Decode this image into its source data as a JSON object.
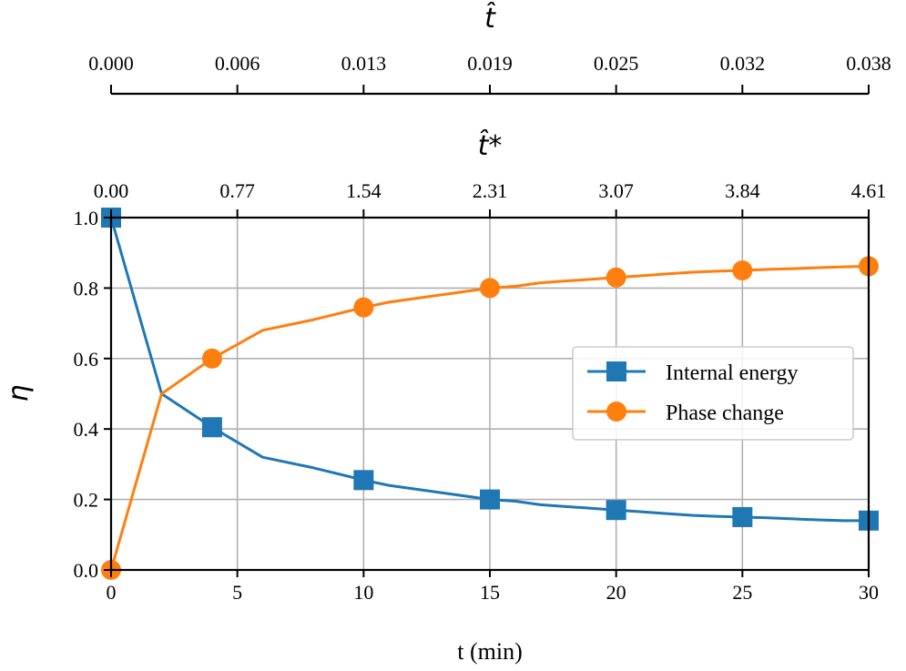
{
  "chart_data": {
    "type": "line",
    "xlabel": "t (min)",
    "ylabel": "η",
    "xlim": [
      0,
      30
    ],
    "ylim": [
      0,
      1
    ],
    "x_ticks": [
      0,
      5,
      10,
      15,
      20,
      25,
      30
    ],
    "y_ticks": [
      "0.0",
      "0.2",
      "0.4",
      "0.6",
      "0.8",
      "1.0"
    ],
    "grid": true,
    "legend_position": "center-right",
    "secondary_axis": {
      "label": "t̂*",
      "ticks": [
        "0.00",
        "0.77",
        "1.54",
        "2.31",
        "3.07",
        "3.84",
        "4.61"
      ]
    },
    "tertiary_axis": {
      "label": "t̂",
      "ticks": [
        "0.000",
        "0.006",
        "0.013",
        "0.019",
        "0.025",
        "0.032",
        "0.038"
      ]
    },
    "series": [
      {
        "name": "Internal energy",
        "color": "#1f77b4",
        "marker": "square",
        "x": [
          0,
          2,
          4,
          6,
          8,
          10,
          11,
          12,
          13,
          14,
          15,
          16,
          17,
          18,
          19,
          20,
          21,
          22,
          23,
          24,
          25,
          26,
          27,
          28,
          29,
          30
        ],
        "y": [
          1.0,
          0.5,
          0.405,
          0.32,
          0.29,
          0.255,
          0.24,
          0.23,
          0.22,
          0.21,
          0.2,
          0.195,
          0.185,
          0.18,
          0.175,
          0.17,
          0.165,
          0.16,
          0.155,
          0.152,
          0.15,
          0.148,
          0.145,
          0.142,
          0.14,
          0.14
        ],
        "marker_x": [
          0,
          4,
          10,
          15,
          20,
          25,
          30
        ],
        "marker_y": [
          1.0,
          0.405,
          0.255,
          0.2,
          0.17,
          0.15,
          0.14
        ]
      },
      {
        "name": "Phase change",
        "color": "#ff7f0e",
        "marker": "circle",
        "x": [
          0,
          2,
          4,
          6,
          8,
          10,
          11,
          12,
          13,
          14,
          15,
          16,
          17,
          18,
          19,
          20,
          21,
          22,
          23,
          24,
          25,
          26,
          27,
          28,
          29,
          30
        ],
        "y": [
          0.0,
          0.5,
          0.6,
          0.68,
          0.71,
          0.745,
          0.76,
          0.77,
          0.78,
          0.79,
          0.8,
          0.805,
          0.815,
          0.82,
          0.825,
          0.83,
          0.835,
          0.84,
          0.845,
          0.848,
          0.85,
          0.853,
          0.855,
          0.858,
          0.86,
          0.862
        ],
        "marker_x": [
          0,
          4,
          10,
          15,
          20,
          25,
          30
        ],
        "marker_y": [
          0.0,
          0.6,
          0.745,
          0.8,
          0.83,
          0.85,
          0.862
        ]
      }
    ]
  }
}
